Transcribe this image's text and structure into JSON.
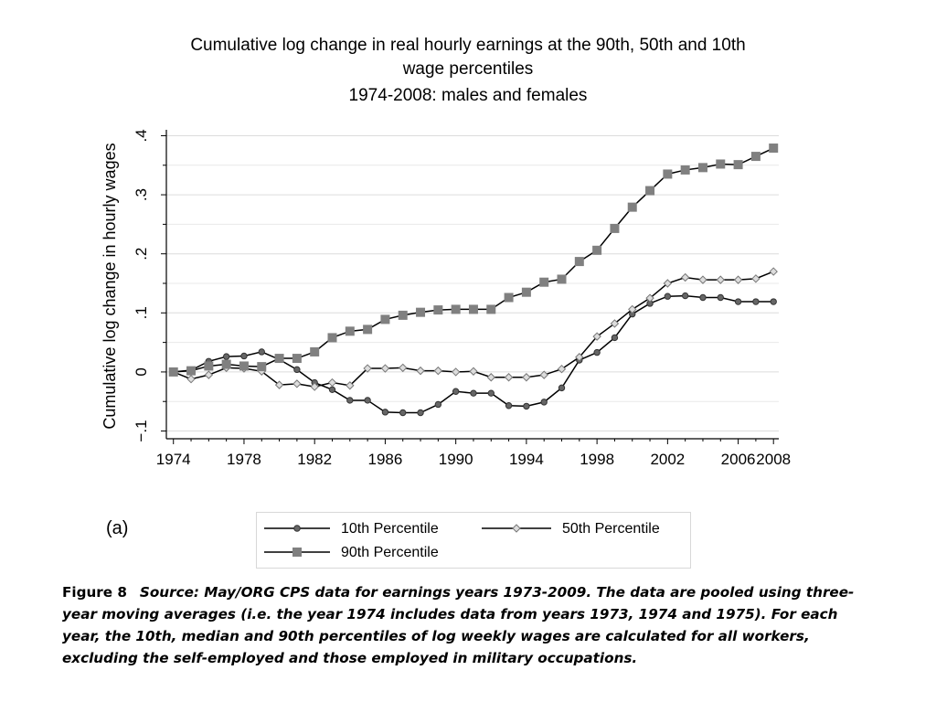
{
  "chart_data": {
    "type": "line",
    "title": [
      "Cumulative log change in real hourly earnings at the 90th, 50th and 10th",
      "wage percentiles",
      "1974-2008: males and females"
    ],
    "xlabel": "",
    "ylabel": "Cumulative log change in hourly wages",
    "ylim": [
      -0.11,
      0.41
    ],
    "xlim": [
      1973.6,
      2008.3
    ],
    "x_ticks": [
      1974,
      1978,
      1982,
      1986,
      1990,
      1994,
      1998,
      2002,
      2006,
      2008
    ],
    "y_ticks": [
      -0.1,
      0,
      0.1,
      0.2,
      0.3,
      0.4
    ],
    "y_tick_labels": [
      "−.1",
      "0",
      ".1",
      ".2",
      ".3",
      ".4"
    ],
    "grid": true,
    "legend_position": "bottom",
    "x": [
      1974,
      1975,
      1976,
      1977,
      1978,
      1979,
      1980,
      1981,
      1982,
      1983,
      1984,
      1985,
      1986,
      1987,
      1988,
      1989,
      1990,
      1991,
      1992,
      1993,
      1994,
      1995,
      1996,
      1997,
      1998,
      1999,
      2000,
      2001,
      2002,
      2003,
      2004,
      2005,
      2006,
      2007,
      2008
    ],
    "series": [
      {
        "name": "10th Percentile",
        "color": "#3a3a3a",
        "marker": "circle",
        "values": [
          0,
          0.003,
          0.018,
          0.026,
          0.027,
          0.034,
          0.021,
          0.004,
          -0.018,
          -0.03,
          -0.048,
          -0.048,
          -0.068,
          -0.069,
          -0.069,
          -0.055,
          -0.033,
          -0.036,
          -0.036,
          -0.057,
          -0.058,
          -0.051,
          -0.027,
          0.02,
          0.033,
          0.058,
          0.098,
          0.116,
          0.128,
          0.129,
          0.126,
          0.126,
          0.119,
          0.119,
          0.119
        ]
      },
      {
        "name": "50th Percentile",
        "color": "#8a8a8a",
        "marker": "diamond",
        "values": [
          0,
          -0.012,
          -0.005,
          0.007,
          0.006,
          0.001,
          -0.022,
          -0.02,
          -0.025,
          -0.018,
          -0.023,
          0.006,
          0.006,
          0.007,
          0.002,
          0.002,
          0.0,
          0.001,
          -0.009,
          -0.009,
          -0.009,
          -0.005,
          0.005,
          0.025,
          0.06,
          0.082,
          0.106,
          0.125,
          0.15,
          0.16,
          0.156,
          0.156,
          0.156,
          0.158,
          0.17
        ]
      },
      {
        "name": "90th Percentile",
        "color": "#7f7f7f",
        "marker": "square",
        "values": [
          0,
          0.002,
          0.01,
          0.013,
          0.01,
          0.009,
          0.023,
          0.023,
          0.034,
          0.058,
          0.069,
          0.072,
          0.089,
          0.096,
          0.101,
          0.105,
          0.106,
          0.106,
          0.106,
          0.126,
          0.135,
          0.152,
          0.157,
          0.187,
          0.206,
          0.243,
          0.279,
          0.307,
          0.335,
          0.342,
          0.346,
          0.352,
          0.351,
          0.365,
          0.379
        ]
      }
    ]
  },
  "panel_label": "(a)",
  "legend": {
    "p10": "10th Percentile",
    "p50": "50th Percentile",
    "p90": "90th Percentile"
  },
  "caption": {
    "figure_label": "Figure 8",
    "text": "Source: May/ORG CPS data for earnings years 1973-2009. The data are pooled using three-year moving averages (i.e. the year 1974 includes data from years 1973, 1974 and 1975). For each year, the 10th, median and 90th percentiles of log weekly wages are calculated for all workers, excluding the self-employed and those employed in military occupations."
  }
}
